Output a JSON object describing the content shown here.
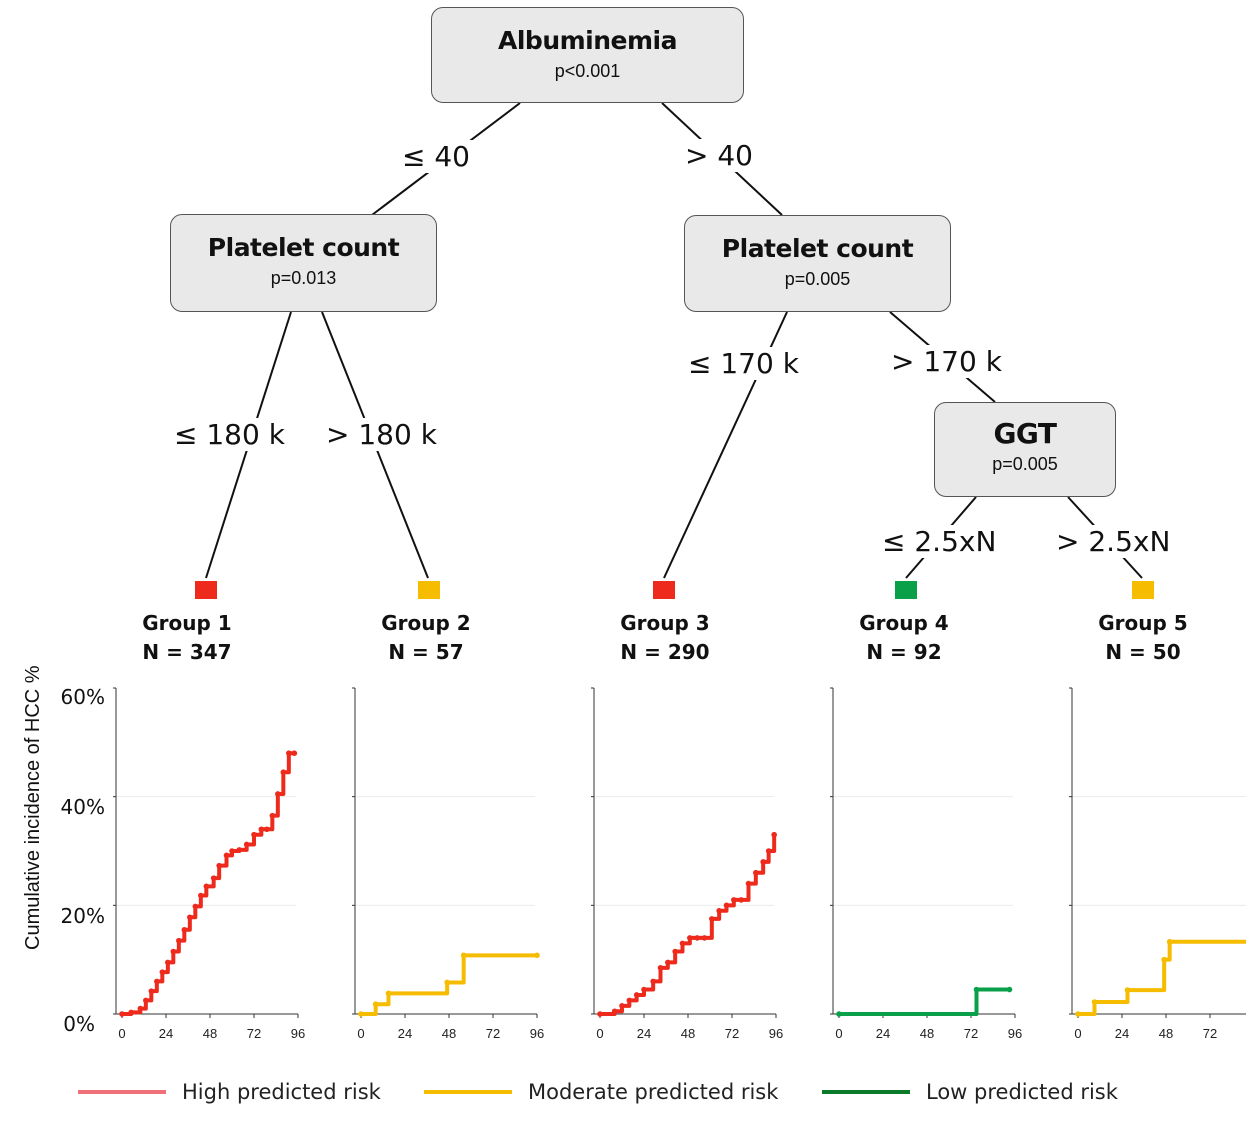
{
  "colors": {
    "high": "#ee2a1c",
    "moderate": "#f5bc00",
    "low": "#0aa04a",
    "legend_high": "#f0707a",
    "legend_moderate": "#f5bc00",
    "legend_low": "#0a7a2a"
  },
  "tree": {
    "root": {
      "title": "Albuminemia",
      "p": "p<0.001"
    },
    "left_edge": "≤ 40",
    "right_edge": "> 40",
    "left": {
      "title": "Platelet count",
      "p": "p=0.013",
      "left_edge": "≤ 180 k",
      "right_edge": "> 180 k"
    },
    "right": {
      "title": "Platelet count",
      "p": "p=0.005",
      "left_edge": "≤ 170 k",
      "right_edge": "> 170 k"
    },
    "ggt": {
      "title": "GGT",
      "p": "p=0.005",
      "left_edge": "≤ 2.5xN",
      "right_edge": "> 2.5xN"
    }
  },
  "groups": [
    {
      "name": "Group 1",
      "n": "N = 347",
      "risk": "high"
    },
    {
      "name": "Group 2",
      "n": "N = 57",
      "risk": "moderate"
    },
    {
      "name": "Group 3",
      "n": "N = 290",
      "risk": "high"
    },
    {
      "name": "Group 4",
      "n": "N = 92",
      "risk": "low"
    },
    {
      "name": "Group 5",
      "n": "N = 50",
      "risk": "moderate"
    }
  ],
  "ylabel": "Cumulative incidence of HCC %",
  "yticks": [
    "60%",
    "40%",
    "20%",
    "0%"
  ],
  "legend": [
    "High predicted risk",
    "Moderate predicted risk",
    "Low predicted risk"
  ],
  "chart_data": [
    {
      "type": "line",
      "step": true,
      "title": "Group 1",
      "ylim": [
        0,
        60
      ],
      "xlim": [
        0,
        96
      ],
      "xticks": [
        0,
        24,
        48,
        72,
        96
      ],
      "x": [
        0,
        5,
        10,
        13,
        16,
        19,
        22,
        25,
        28,
        31,
        34,
        37,
        40,
        43,
        46,
        50,
        53,
        57,
        60,
        64,
        68,
        72,
        76,
        79,
        82,
        85,
        88,
        91,
        94
      ],
      "y": [
        0,
        0.3,
        1.0,
        2.5,
        4.2,
        6.0,
        7.7,
        9.5,
        11.5,
        13.5,
        15.5,
        17.8,
        19.8,
        21.8,
        23.5,
        25.0,
        27.3,
        29.2,
        30.0,
        30.2,
        31.2,
        33.0,
        34.0,
        34.0,
        36.5,
        40.5,
        44.5,
        48.0,
        48.0
      ]
    },
    {
      "type": "line",
      "step": true,
      "title": "Group 2",
      "ylim": [
        0,
        60
      ],
      "xlim": [
        0,
        96
      ],
      "xticks": [
        0,
        24,
        48,
        72,
        96
      ],
      "x": [
        0,
        8,
        15,
        47,
        56,
        96
      ],
      "y": [
        0,
        1.8,
        3.8,
        5.8,
        10.8,
        10.8
      ]
    },
    {
      "type": "line",
      "step": true,
      "title": "Group 3",
      "ylim": [
        0,
        60
      ],
      "xlim": [
        0,
        96
      ],
      "xticks": [
        0,
        24,
        48,
        72,
        96
      ],
      "x": [
        0,
        8,
        12,
        16,
        20,
        24,
        29,
        33,
        37,
        41,
        45,
        49,
        53,
        57,
        61,
        65,
        69,
        73,
        77,
        81,
        85,
        89,
        92,
        95
      ],
      "y": [
        0,
        0.5,
        1.5,
        2.5,
        3.5,
        4.5,
        6.0,
        8.5,
        9.5,
        11.5,
        13.0,
        14.0,
        14.0,
        14.0,
        17.5,
        19.0,
        20.0,
        21.0,
        21.0,
        24.0,
        26.0,
        28.0,
        30.0,
        33.0
      ]
    },
    {
      "type": "line",
      "step": true,
      "title": "Group 4",
      "ylim": [
        0,
        60
      ],
      "xlim": [
        0,
        96
      ],
      "xticks": [
        0,
        24,
        48,
        72,
        96
      ],
      "x": [
        0,
        75,
        93
      ],
      "y": [
        0,
        4.5,
        4.5
      ]
    },
    {
      "type": "line",
      "step": true,
      "title": "Group 5",
      "ylim": [
        0,
        60
      ],
      "xlim": [
        0,
        96
      ],
      "xticks": [
        0,
        24,
        48,
        72,
        96
      ],
      "x": [
        0,
        9,
        27,
        47,
        50,
        96
      ],
      "y": [
        0,
        2.2,
        4.4,
        10.0,
        13.3,
        13.3
      ]
    }
  ]
}
